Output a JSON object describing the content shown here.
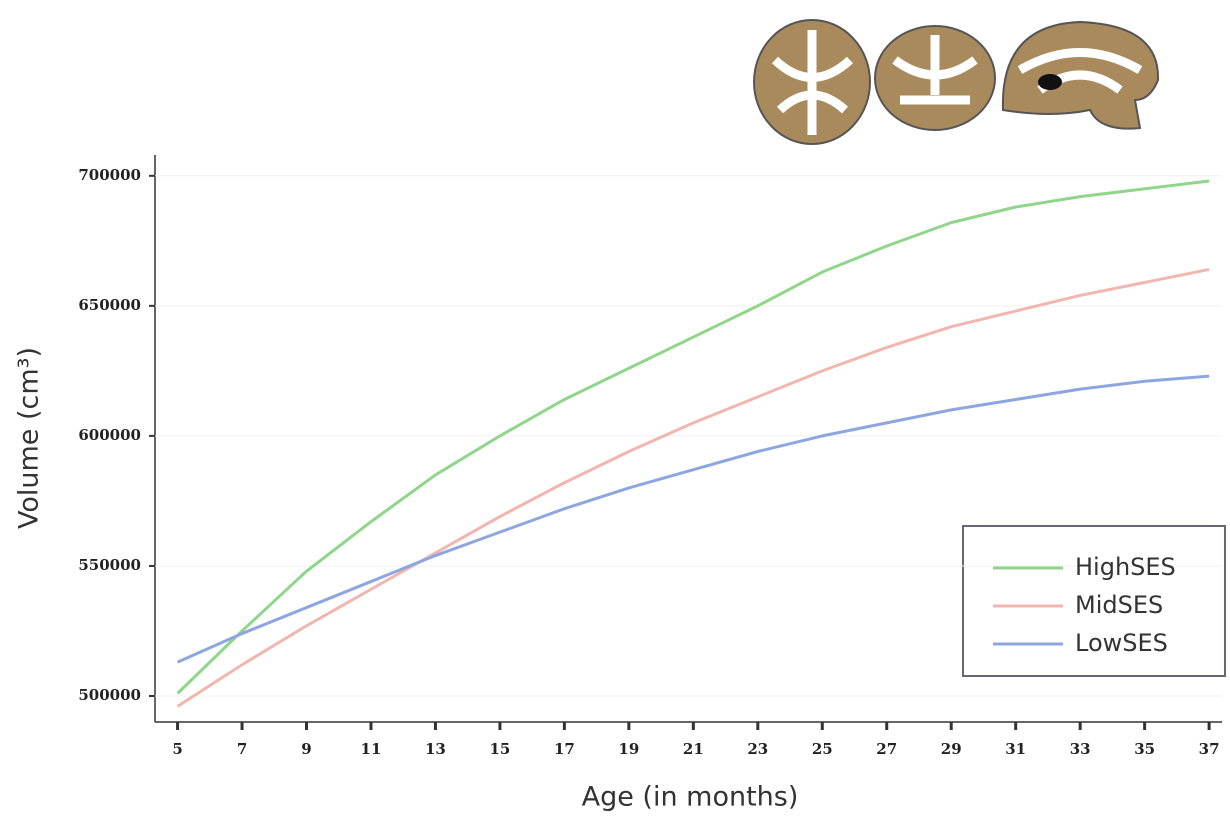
{
  "chart_data": {
    "type": "line",
    "x_label": "Age (in months)",
    "y_label": "Volume (cm³)",
    "x": [
      5,
      7,
      9,
      11,
      13,
      15,
      17,
      19,
      21,
      23,
      25,
      27,
      29,
      31,
      33,
      35,
      37
    ],
    "series": [
      {
        "name": "HighSES",
        "color": "#8fd68a",
        "values": [
          501000,
          525000,
          548000,
          567000,
          585000,
          600000,
          614000,
          626000,
          638000,
          650000,
          663000,
          673000,
          682000,
          688000,
          692000,
          695000,
          698000
        ]
      },
      {
        "name": "MidSES",
        "color": "#f2b6ae",
        "values": [
          496000,
          512000,
          527000,
          541000,
          555000,
          569000,
          582000,
          594000,
          605000,
          615000,
          625000,
          634000,
          642000,
          648000,
          654000,
          659000,
          664000
        ]
      },
      {
        "name": "LowSES",
        "color": "#8ea6e0",
        "values": [
          513000,
          524000,
          534000,
          544000,
          554000,
          563000,
          572000,
          580000,
          587000,
          594000,
          600000,
          605000,
          610000,
          614000,
          618000,
          621000,
          623000
        ]
      }
    ],
    "xlim": [
      4.3,
      37.4
    ],
    "xticks": [
      5,
      7,
      9,
      11,
      13,
      15,
      17,
      19,
      21,
      23,
      25,
      27,
      29,
      31,
      33,
      35,
      37
    ],
    "ylim": [
      490000,
      708000
    ],
    "yticks": [
      500000,
      550000,
      600000,
      650000,
      700000
    ],
    "grid": true,
    "legend": "lower right"
  }
}
